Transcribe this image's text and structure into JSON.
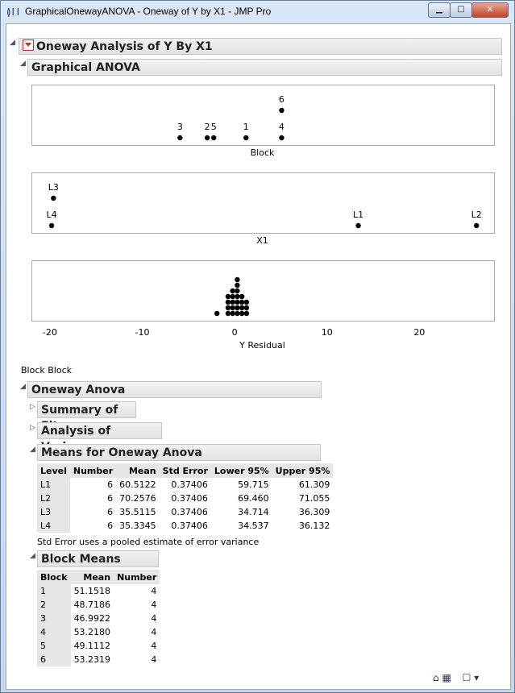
{
  "window": {
    "title": "GraphicalOnewayANOVA - Oneway of Y by X1 - JMP Pro",
    "minimize": "▁",
    "maximize": "□",
    "close": "✕"
  },
  "report": {
    "title": "Oneway Analysis of Y By X1",
    "graphical_anova": {
      "title": "Graphical ANOVA",
      "block_plot": {
        "xlabel": "Block",
        "points": [
          {
            "label": "1",
            "x": 1.15,
            "row": 0
          },
          {
            "label": "2",
            "x": -3.05,
            "row": 0
          },
          {
            "label": "3",
            "x": -6.0,
            "row": 0
          },
          {
            "label": "4",
            "x": 5.0,
            "row": 0
          },
          {
            "label": "5",
            "x": -2.35,
            "row": 0
          },
          {
            "label": "6",
            "x": 5.0,
            "row": 1
          }
        ]
      },
      "x1_plot": {
        "xlabel": "X1",
        "points": [
          {
            "label": "L1",
            "x": 13.3,
            "row": 0
          },
          {
            "label": "L2",
            "x": 26.1,
            "row": 0
          },
          {
            "label": "L3",
            "x": -19.7,
            "row": 1
          },
          {
            "label": "L4",
            "x": -19.9,
            "row": 0
          }
        ]
      },
      "residual_plot": {
        "xlabel": "Y Residual",
        "xlim": [
          -22,
          28
        ],
        "ticks": [
          "-20",
          "-10",
          "0",
          "10",
          "20"
        ],
        "tick_values": [
          -20,
          -10,
          0,
          10,
          20
        ],
        "stacks": [
          {
            "x": -2.0,
            "count": 1
          },
          {
            "x": -0.8,
            "count": 4
          },
          {
            "x": -0.3,
            "count": 5
          },
          {
            "x": 0.2,
            "count": 7
          },
          {
            "x": 0.7,
            "count": 4
          },
          {
            "x": 1.2,
            "count": 3
          }
        ]
      }
    },
    "block_label": "Block Block",
    "oneway_anova": {
      "title": "Oneway Anova",
      "summary_of_fit": "Summary of Fit",
      "analysis_of_variance": "Analysis of Variance",
      "means": {
        "title": "Means for Oneway Anova",
        "columns": [
          "Level",
          "Number",
          "Mean",
          "Std Error",
          "Lower 95%",
          "Upper 95%"
        ],
        "rows": [
          [
            "L1",
            "6",
            "60.5122",
            "0.37406",
            "59.715",
            "61.309"
          ],
          [
            "L2",
            "6",
            "70.2576",
            "0.37406",
            "69.460",
            "71.055"
          ],
          [
            "L3",
            "6",
            "35.5115",
            "0.37406",
            "34.714",
            "36.309"
          ],
          [
            "L4",
            "6",
            "35.3345",
            "0.37406",
            "34.537",
            "36.132"
          ]
        ],
        "note": "Std Error uses a pooled estimate of error variance"
      },
      "block_means": {
        "title": "Block Means",
        "columns": [
          "Block",
          "Mean",
          "Number"
        ],
        "rows": [
          [
            "1",
            "51.1518",
            "4"
          ],
          [
            "2",
            "48.7186",
            "4"
          ],
          [
            "3",
            "46.9922",
            "4"
          ],
          [
            "4",
            "53.2180",
            "4"
          ],
          [
            "5",
            "49.1112",
            "4"
          ],
          [
            "6",
            "53.2319",
            "4"
          ]
        ]
      }
    }
  },
  "status": {
    "home_icon": "home-icon",
    "grid_icon": "table-icon",
    "checkbox_icon": "checkbox-icon",
    "menu_icon": "dropdown-arrow-icon"
  }
}
